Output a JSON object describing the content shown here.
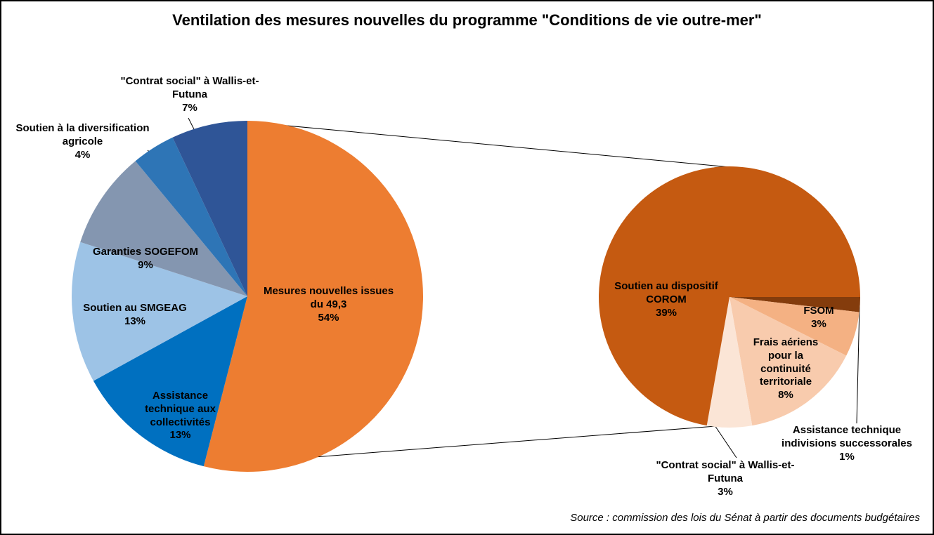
{
  "title": "Ventilation des mesures nouvelles du programme \"Conditions de vie outre-mer\"",
  "source": "Source : commission des lois du Sénat à partir des documents budgétaires",
  "chart_data": {
    "type": "pie",
    "subtype": "pie-of-pie",
    "legend": "none",
    "main_pie": {
      "start_angle": 0,
      "slices": [
        {
          "label": "Mesures nouvelles issues du 49,3",
          "pct": 54,
          "pct_label": "54%",
          "color": "#ED7D31"
        },
        {
          "label": "Assistance technique aux collectivités",
          "pct": 13,
          "pct_label": "13%",
          "color": "#0070C0"
        },
        {
          "label": "Soutien au SMGEAG",
          "pct": 13,
          "pct_label": "13%",
          "color": "#9DC3E6"
        },
        {
          "label": "Garanties SOGEFOM",
          "pct": 9,
          "pct_label": "9%",
          "color": "#8496B0"
        },
        {
          "label": "Soutien à la diversification agricole",
          "pct": 4,
          "pct_label": "4%",
          "color": "#2E75B6"
        },
        {
          "label": "\"Contrat social\" à Wallis-et-Futuna",
          "pct": 7,
          "pct_label": "7%",
          "color": "#2F5597"
        }
      ]
    },
    "secondary_pie": {
      "note": "breakdown of the 54% slice",
      "start_angle": 90,
      "slices": [
        {
          "label": "Assistance technique indivisions successorales",
          "pct": 1,
          "pct_label": "1%",
          "color": "#843C0C"
        },
        {
          "label": "FSOM",
          "pct": 3,
          "pct_label": "3%",
          "color": "#F4B183"
        },
        {
          "label": "Frais aériens pour la continuité territoriale",
          "pct": 8,
          "pct_label": "8%",
          "color": "#F8CBAD"
        },
        {
          "label": "\"Contrat social\" à Wallis-et-Futuna",
          "pct": 3,
          "pct_label": "3%",
          "color": "#FBE5D6"
        },
        {
          "label": "Soutien au dispositif COROM",
          "pct": 39,
          "pct_label": "39%",
          "color": "#C55A11"
        }
      ]
    }
  }
}
